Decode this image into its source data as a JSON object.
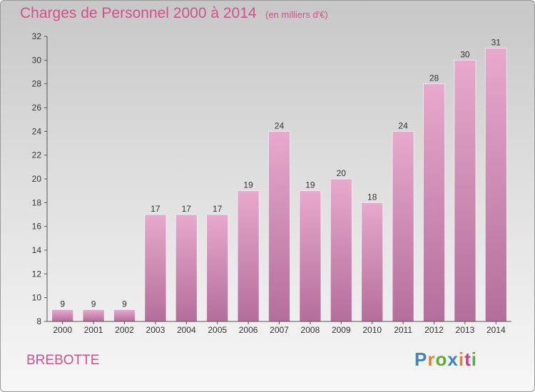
{
  "header": {
    "title": "Charges de Personnel 2000 à 2014",
    "subtitle": "(en milliers d'€)"
  },
  "footer": {
    "commune": "BREBOTTE",
    "brand": "Proxiti",
    "brand_colors": [
      "#3a86c8",
      "#e8812f",
      "#5fae3c",
      "#3a86c8",
      "#e8812f",
      "#d03a8a",
      "#5fae3c"
    ]
  },
  "colors": {
    "accent": "#d0528a",
    "bar_top": "#e7a9cc",
    "bar_bottom": "#b46e9b"
  },
  "chart_data": {
    "type": "bar",
    "categories": [
      "2000",
      "2001",
      "2002",
      "2003",
      "2004",
      "2005",
      "2006",
      "2007",
      "2008",
      "2009",
      "2010",
      "2011",
      "2012",
      "2013",
      "2014"
    ],
    "values": [
      9,
      9,
      9,
      17,
      17,
      17,
      19,
      24,
      19,
      20,
      18,
      24,
      28,
      30,
      31
    ],
    "title": "Charges de Personnel 2000 à 2014",
    "subtitle": "(en milliers d'€)",
    "xlabel": "",
    "ylabel": "",
    "ylim": [
      8,
      32
    ],
    "yticks": [
      8,
      10,
      12,
      14,
      16,
      18,
      20,
      22,
      24,
      26,
      28,
      30,
      32
    ],
    "grid": false,
    "legend": "none"
  }
}
